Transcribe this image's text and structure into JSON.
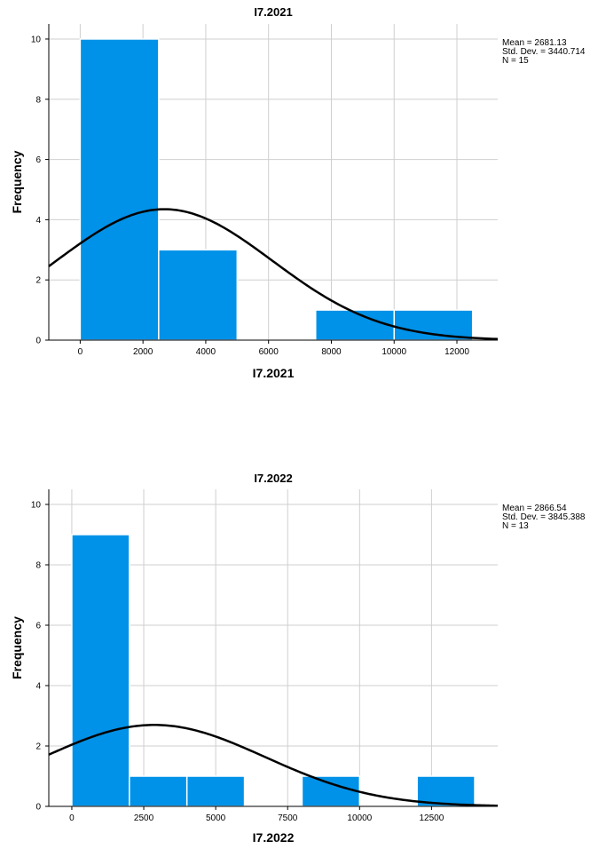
{
  "colors": {
    "bar": "#0092e8",
    "curve": "#000000",
    "grid": "#cfcfcf"
  },
  "chart_data": [
    {
      "type": "bar",
      "title": "I7.2021",
      "xlabel": "I7.2021",
      "ylabel": "Frequency",
      "xlim": [
        -1000,
        13300
      ],
      "ylim": [
        0,
        10.5
      ],
      "x_ticks": [
        0,
        2000,
        4000,
        6000,
        8000,
        10000,
        12000
      ],
      "y_ticks": [
        0,
        2,
        4,
        6,
        8,
        10
      ],
      "bins": [
        {
          "start": 0,
          "end": 2500,
          "count": 10
        },
        {
          "start": 2500,
          "end": 5000,
          "count": 3
        },
        {
          "start": 5000,
          "end": 7500,
          "count": 0
        },
        {
          "start": 7500,
          "end": 10000,
          "count": 1
        },
        {
          "start": 10000,
          "end": 12500,
          "count": 1
        }
      ],
      "stats": [
        "Mean = 2681.13",
        "Std. Dev. = 3440.714",
        "N = 15"
      ],
      "normal_curve": {
        "mean": 2681.13,
        "sd": 3440.714,
        "n": 15,
        "bin_width": 2500
      },
      "grid": true,
      "legend_position": "top-right"
    },
    {
      "type": "bar",
      "title": "I7.2022",
      "xlabel": "I7.2022",
      "ylabel": "Frequency",
      "xlim": [
        -800,
        14800
      ],
      "ylim": [
        0,
        10.5
      ],
      "x_ticks": [
        0,
        2500,
        5000,
        7500,
        10000,
        12500
      ],
      "y_ticks": [
        0,
        2,
        4,
        6,
        8,
        10
      ],
      "bins": [
        {
          "start": 0,
          "end": 2000,
          "count": 9
        },
        {
          "start": 2000,
          "end": 4000,
          "count": 1
        },
        {
          "start": 4000,
          "end": 6000,
          "count": 1
        },
        {
          "start": 6000,
          "end": 8000,
          "count": 0
        },
        {
          "start": 8000,
          "end": 10000,
          "count": 1
        },
        {
          "start": 10000,
          "end": 12000,
          "count": 0
        },
        {
          "start": 12000,
          "end": 14000,
          "count": 1
        }
      ],
      "stats": [
        "Mean = 2866.54",
        "Std. Dev. = 3845.388",
        "N = 13"
      ],
      "normal_curve": {
        "mean": 2866.54,
        "sd": 3845.388,
        "n": 13,
        "bin_width": 2000
      },
      "grid": true,
      "legend_position": "top-right"
    }
  ]
}
